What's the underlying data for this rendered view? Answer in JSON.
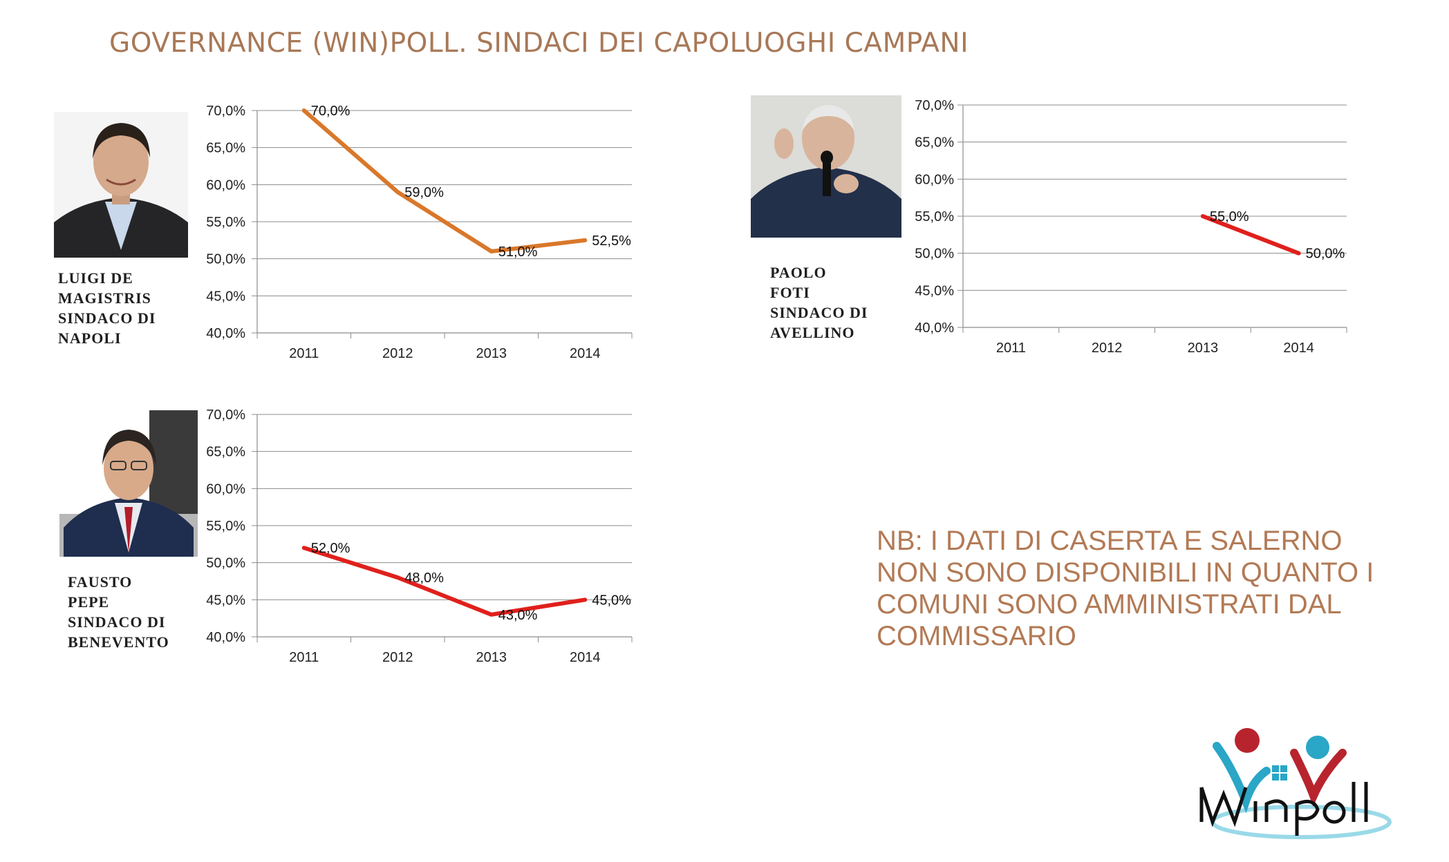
{
  "title": "GOVERNANCE (WIN)POLL. SINDACI DEI CAPOLUOGHI CAMPANI",
  "mayors": [
    {
      "lines": [
        "LUIGI DE",
        "MAGISTRIS",
        "SINDACO DI",
        "NAPOLI"
      ]
    },
    {
      "lines": [
        "PAOLO",
        "FOTI",
        "SINDACO DI",
        "AVELLINO"
      ]
    },
    {
      "lines": [
        "FAUSTO",
        "PEPE",
        "SINDACO DI",
        "BENEVENTO"
      ]
    }
  ],
  "chart_data": [
    {
      "type": "line",
      "categories": [
        "2011",
        "2012",
        "2013",
        "2014"
      ],
      "values": [
        70.0,
        59.0,
        51.0,
        52.5
      ],
      "data_labels": [
        "70,0%",
        "59,0%",
        "51,0%",
        "52,5%"
      ],
      "y_ticks": [
        "70,0%",
        "65,0%",
        "60,0%",
        "55,0%",
        "50,0%",
        "45,0%",
        "40,0%"
      ],
      "ylim": [
        40,
        70
      ],
      "grid": true,
      "color": "#d9782a"
    },
    {
      "type": "line",
      "categories": [
        "2011",
        "2012",
        "2013",
        "2014"
      ],
      "values": [
        null,
        null,
        55.0,
        50.0
      ],
      "data_labels": [
        "",
        "",
        "55,0%",
        "50,0%"
      ],
      "y_ticks": [
        "70,0%",
        "65,0%",
        "60,0%",
        "55,0%",
        "50,0%",
        "45,0%",
        "40,0%"
      ],
      "ylim": [
        40,
        70
      ],
      "grid": true,
      "color": "#e0201c"
    },
    {
      "type": "line",
      "categories": [
        "2011",
        "2012",
        "2013",
        "2014"
      ],
      "values": [
        52.0,
        48.0,
        43.0,
        45.0
      ],
      "data_labels": [
        "52,0%",
        "48,0%",
        "43,0%",
        "45,0%"
      ],
      "y_ticks": [
        "70,0%",
        "65,0%",
        "60,0%",
        "55,0%",
        "50,0%",
        "45,0%",
        "40,0%"
      ],
      "ylim": [
        40,
        70
      ],
      "grid": true,
      "color": "#e0201c"
    }
  ],
  "note": "NB: I DATI DI CASERTA E SALERNO NON SONO DISPONIBILI IN QUANTO I COMUNI SONO AMMINISTRATI DAL COMMISSARIO",
  "logo": {
    "text": "winpoll",
    "colors": {
      "red": "#b8242e",
      "teal": "#2aa6c6"
    }
  }
}
